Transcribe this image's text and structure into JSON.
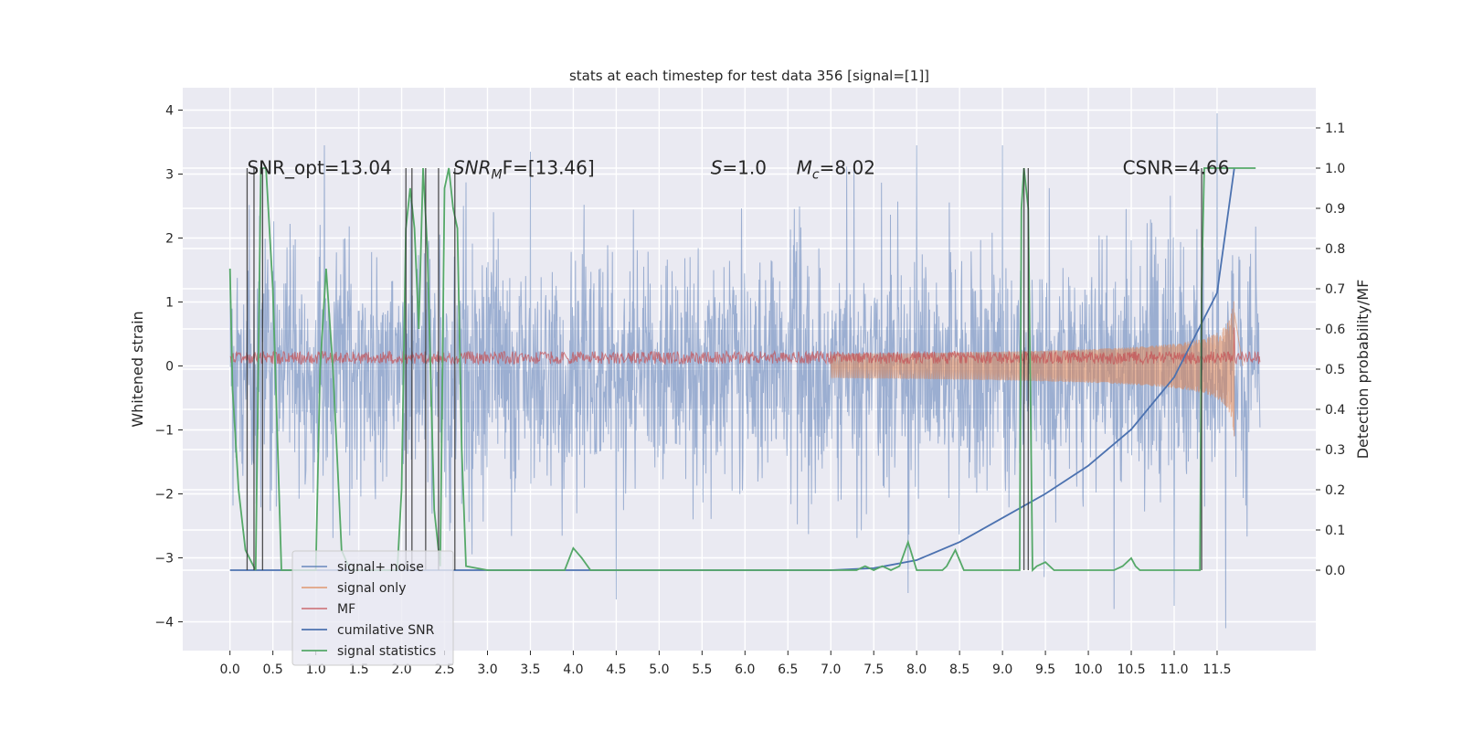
{
  "chart_data": {
    "type": "line",
    "title": "stats at each timestep for test data 356 [signal=[1]]",
    "xlabel": "",
    "ylabel": "Whitened strain",
    "ylabel_right": "Detection probability/MF",
    "xlim": [
      -0.55,
      12.65
    ],
    "ylim": [
      -4.45,
      4.35
    ],
    "ylim_right": [
      -0.2,
      1.2
    ],
    "x_ticks": [
      0.0,
      0.5,
      1.0,
      1.5,
      2.0,
      2.5,
      3.0,
      3.5,
      4.0,
      4.5,
      5.0,
      5.5,
      6.0,
      6.5,
      7.0,
      7.5,
      8.0,
      8.5,
      9.0,
      9.5,
      10.0,
      10.5,
      11.0,
      11.5
    ],
    "x_tick_labels": [
      "0.0",
      "0.5",
      "1.0",
      "1.5",
      "2.0",
      "2.5",
      "3.0",
      "3.5",
      "4.0",
      "4.5",
      "5.0",
      "5.5",
      "6.0",
      "6.5",
      "7.0",
      "7.5",
      "8.0",
      "8.5",
      "9.0",
      "9.5",
      "10.0",
      "10.5",
      "11.0",
      "11.5"
    ],
    "y_ticks": [
      4,
      3,
      2,
      1,
      0,
      -1,
      -2,
      -3,
      -4
    ],
    "y_tick_labels": [
      "4",
      "3",
      "2",
      "1",
      "0",
      "−1",
      "−2",
      "−3",
      "−4"
    ],
    "y_right_ticks": [
      1.1,
      1.0,
      0.9,
      0.8,
      0.7,
      0.6,
      0.5,
      0.4,
      0.3,
      0.2,
      0.1,
      0.0
    ],
    "y_right_tick_labels": [
      "1.1",
      "1.0",
      "0.9",
      "0.8",
      "0.7",
      "0.6",
      "0.5",
      "0.4",
      "0.3",
      "0.2",
      "0.1",
      "0.0"
    ],
    "grid": true,
    "legend_position": "lower-left",
    "annotations": [
      {
        "label": "SNR_opt=13.04",
        "x": 0.2,
        "y": 3.1
      },
      {
        "label": "SNR",
        "sub": "M",
        "rest": "F=[13.46]",
        "italic": true,
        "x": 2.6,
        "y": 3.1
      },
      {
        "label": "S",
        "rest": "=1.0",
        "italic": true,
        "x": 5.6,
        "y": 3.1
      },
      {
        "label": "M",
        "sub": "c",
        "rest": "=8.02",
        "italic": true,
        "x": 6.6,
        "y": 3.1
      },
      {
        "label": "CSNR=4.66",
        "x": 10.4,
        "y": 3.1
      }
    ],
    "series": [
      {
        "name": "signal+ noise",
        "color": "#4c72b0",
        "axis": "left",
        "kind": "noise",
        "x_range": [
          0.0,
          12.0
        ],
        "amplitude": 1.5,
        "extreme_values": [
          [
            11.5,
            3.95
          ],
          [
            11.6,
            -4.1
          ],
          [
            8.0,
            3.45
          ],
          [
            7.9,
            -3.55
          ],
          [
            4.5,
            -3.65
          ],
          [
            10.3,
            -3.8
          ],
          [
            11.0,
            -3.75
          ],
          [
            1.1,
            3.45
          ],
          [
            9.0,
            3.45
          ],
          [
            3.5,
            3.35
          ]
        ]
      },
      {
        "name": "signal only",
        "color": "#dd8452",
        "axis": "left",
        "kind": "chirp",
        "x_range": [
          7.0,
          11.8
        ],
        "peak_x": 11.7,
        "peak_amplitude": 1.3
      },
      {
        "name": "MF",
        "color": "#c44e52",
        "axis": "left",
        "kind": "band",
        "x_range": [
          0.0,
          12.0
        ],
        "level": 0.13,
        "amplitude": 0.1,
        "spike": [
          11.7,
          0.6
        ]
      },
      {
        "name": "cumilative SNR",
        "color": "#4c72b0",
        "axis": "right",
        "x": [
          0.0,
          7.0,
          7.5,
          8.0,
          8.5,
          9.0,
          9.5,
          10.0,
          10.5,
          11.0,
          11.5,
          11.7
        ],
        "values": [
          0.0,
          0.0,
          0.005,
          0.025,
          0.07,
          0.13,
          0.19,
          0.26,
          0.35,
          0.48,
          0.69,
          1.0
        ]
      },
      {
        "name": "signal statistics",
        "color": "#55a868",
        "axis": "right",
        "x": [
          0.0,
          0.03,
          0.1,
          0.18,
          0.25,
          0.3,
          0.36,
          0.42,
          0.5,
          0.55,
          0.6,
          1.0,
          1.05,
          1.12,
          1.2,
          1.3,
          1.4,
          1.95,
          2.0,
          2.05,
          2.1,
          2.15,
          2.2,
          2.25,
          2.3,
          2.38,
          2.45,
          2.5,
          2.55,
          2.6,
          2.65,
          2.7,
          2.75,
          3.0,
          3.9,
          4.0,
          4.1,
          4.2,
          7.3,
          7.4,
          7.5,
          7.6,
          7.7,
          7.8,
          7.9,
          8.0,
          8.3,
          8.35,
          8.45,
          8.55,
          8.65,
          9.2,
          9.22,
          9.25,
          9.3,
          9.35,
          9.4,
          9.5,
          9.6,
          10.3,
          10.4,
          10.5,
          10.55,
          10.6,
          11.3,
          11.32,
          11.35,
          11.4,
          11.5,
          11.7,
          11.72,
          11.95
        ],
        "values": [
          0.75,
          0.45,
          0.2,
          0.05,
          0.02,
          0.0,
          1.0,
          1.0,
          0.7,
          0.35,
          0.0,
          0.0,
          0.5,
          0.75,
          0.5,
          0.05,
          0.0,
          0.0,
          0.2,
          0.85,
          0.95,
          0.85,
          0.6,
          1.0,
          0.8,
          0.15,
          0.01,
          0.95,
          1.0,
          0.9,
          0.85,
          0.3,
          0.01,
          0.0,
          0.0,
          0.055,
          0.03,
          0.0,
          0.0,
          0.01,
          0.0,
          0.01,
          0.0,
          0.01,
          0.07,
          0.0,
          0.0,
          0.01,
          0.05,
          0.0,
          0.0,
          0.0,
          0.9,
          1.0,
          0.9,
          0.0,
          0.01,
          0.02,
          0.0,
          0.0,
          0.01,
          0.03,
          0.01,
          0.0,
          0.0,
          0.7,
          1.0,
          1.0,
          1.0,
          1.0,
          1.0,
          1.0
        ]
      }
    ],
    "vertical_markers": [
      0.2,
      0.28,
      0.38,
      2.05,
      2.12,
      2.28,
      2.43,
      2.62,
      9.25,
      9.3,
      11.32
    ]
  }
}
